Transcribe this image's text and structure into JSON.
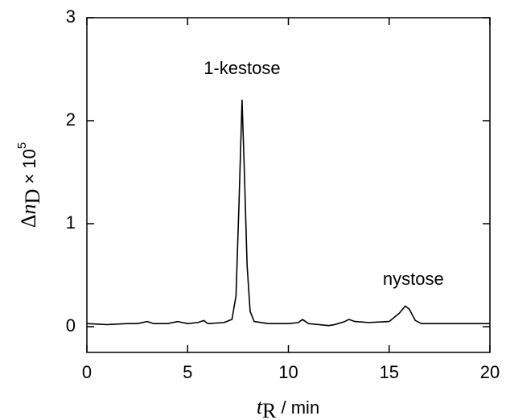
{
  "chart_data": {
    "type": "line",
    "x": [
      0,
      1,
      2,
      2.5,
      3,
      3.3,
      4,
      4.5,
      5,
      5.5,
      5.8,
      6,
      6.8,
      7.2,
      7.4,
      7.55,
      7.7,
      7.8,
      7.95,
      8.1,
      8.3,
      9,
      10,
      10.5,
      10.7,
      11,
      11.5,
      12,
      12.3,
      12.8,
      13,
      13.3,
      14,
      15,
      15.5,
      15.8,
      16,
      16.3,
      16.6,
      17,
      20
    ],
    "series": [
      {
        "color": "#000000",
        "values": [
          0.03,
          0.02,
          0.03,
          0.03,
          0.05,
          0.03,
          0.03,
          0.05,
          0.03,
          0.04,
          0.06,
          0.03,
          0.04,
          0.07,
          0.3,
          1.2,
          2.2,
          1.6,
          0.6,
          0.15,
          0.05,
          0.03,
          0.03,
          0.04,
          0.07,
          0.03,
          0.02,
          0.01,
          0.02,
          0.05,
          0.07,
          0.05,
          0.04,
          0.05,
          0.13,
          0.2,
          0.17,
          0.06,
          0.03,
          0.03,
          0.03
        ]
      }
    ],
    "xlim": [
      0,
      20
    ],
    "xticks": [
      0,
      5,
      10,
      15,
      20
    ],
    "ylim": [
      -0.25,
      3
    ],
    "yticks": [
      0,
      1,
      2,
      3
    ],
    "xlabel": {
      "var": "t",
      "sub": "R",
      "rest": " / min"
    },
    "ylabel": {
      "delta": "Δ",
      "var": "n",
      "sub": "D",
      "times": " × 10",
      "sup": "5"
    },
    "annotations": [
      {
        "text": "1-kestose",
        "x": 7.7,
        "y": 2.5
      },
      {
        "text": "nystose",
        "x": 16.2,
        "y": 0.45
      }
    ]
  }
}
